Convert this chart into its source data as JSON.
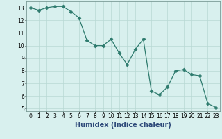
{
  "x": [
    0,
    1,
    2,
    3,
    4,
    5,
    6,
    7,
    8,
    9,
    10,
    11,
    12,
    13,
    14,
    15,
    16,
    17,
    18,
    19,
    20,
    21,
    22,
    23
  ],
  "y": [
    13.0,
    12.8,
    13.0,
    13.1,
    13.1,
    12.7,
    12.2,
    10.4,
    10.0,
    10.0,
    10.5,
    9.4,
    8.5,
    9.7,
    10.5,
    6.4,
    6.1,
    6.7,
    8.0,
    8.1,
    7.7,
    7.6,
    5.4,
    5.1
  ],
  "line_color": "#2e7b6e",
  "marker": "D",
  "marker_size": 2.5,
  "bg_color": "#d8f0ee",
  "grid_color": "#b8d8d4",
  "xlabel": "Humidex (Indice chaleur)",
  "xlim": [
    -0.5,
    23.5
  ],
  "ylim": [
    4.8,
    13.5
  ],
  "yticks": [
    5,
    6,
    7,
    8,
    9,
    10,
    11,
    12,
    13
  ],
  "xticks": [
    0,
    1,
    2,
    3,
    4,
    5,
    6,
    7,
    8,
    9,
    10,
    11,
    12,
    13,
    14,
    15,
    16,
    17,
    18,
    19,
    20,
    21,
    22,
    23
  ],
  "tick_label_fontsize": 5.5,
  "xlabel_fontsize": 7.0
}
